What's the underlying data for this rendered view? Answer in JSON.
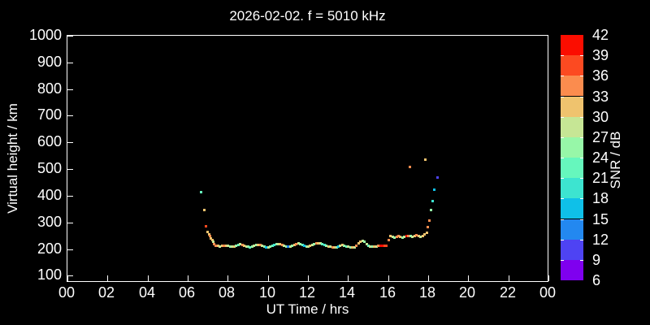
{
  "title": "2026-02-02. f = 5010 kHz",
  "colors": {
    "background": "#000000",
    "frame": "#FFFFFF",
    "text": "#FFFFFF"
  },
  "x_axis": {
    "label": "UT Time / hrs",
    "ticks": [
      {
        "hour": 0,
        "label": "00"
      },
      {
        "hour": 2,
        "label": "02"
      },
      {
        "hour": 4,
        "label": "04"
      },
      {
        "hour": 6,
        "label": "06"
      },
      {
        "hour": 8,
        "label": "08"
      },
      {
        "hour": 10,
        "label": "10"
      },
      {
        "hour": 12,
        "label": "12"
      },
      {
        "hour": 14,
        "label": "14"
      },
      {
        "hour": 16,
        "label": "16"
      },
      {
        "hour": 18,
        "label": "18"
      },
      {
        "hour": 20,
        "label": "20"
      },
      {
        "hour": 22,
        "label": "22"
      },
      {
        "hour": 24,
        "label": "00"
      }
    ]
  },
  "y_axis": {
    "label": "Virtual height / km",
    "ticks": [
      100,
      200,
      300,
      400,
      500,
      600,
      700,
      800,
      900,
      1000
    ]
  },
  "colorbar": {
    "label": "SNR / dB",
    "min": 6,
    "max": 42,
    "bin_size": 3,
    "ticks": [
      6,
      9,
      12,
      15,
      18,
      21,
      24,
      27,
      30,
      33,
      36,
      39,
      42
    ],
    "colors_low_to_high": [
      "#7F00EF",
      "#4E43F3",
      "#2388F0",
      "#0FC0E8",
      "#3DE4D0",
      "#66F7BD",
      "#97F7A8",
      "#C6E695",
      "#EFC36E",
      "#FB8C4E",
      "#FC4A21",
      "#FB0D00"
    ]
  },
  "chart_data": {
    "type": "scatter",
    "title": "2026-02-02. f = 5010 kHz",
    "xlabel": "UT Time / hrs",
    "ylabel": "Virtual height / km",
    "color_label": "SNR / dB",
    "x_range_hours": [
      0,
      24
    ],
    "y_range_km": [
      74,
      1000
    ],
    "snr_range_db": [
      6,
      42
    ],
    "point_format": [
      "ut_hours",
      "virtual_height_km",
      "snr_db"
    ],
    "points": [
      [
        6.65,
        416,
        22
      ],
      [
        6.81,
        349,
        31
      ],
      [
        6.89,
        288,
        37
      ],
      [
        6.97,
        267,
        31
      ],
      [
        7.05,
        258,
        31
      ],
      [
        7.09,
        249,
        34
      ],
      [
        7.13,
        242,
        31
      ],
      [
        7.22,
        236,
        31
      ],
      [
        7.26,
        230,
        28
      ],
      [
        7.3,
        221,
        34
      ],
      [
        7.38,
        215,
        34
      ],
      [
        7.5,
        213,
        31
      ],
      [
        7.6,
        212,
        28
      ],
      [
        7.7,
        213,
        31
      ],
      [
        7.8,
        214,
        34
      ],
      [
        7.9,
        215,
        31
      ],
      [
        8.0,
        213,
        28
      ],
      [
        8.1,
        211,
        25
      ],
      [
        8.2,
        210,
        28
      ],
      [
        8.3,
        212,
        31
      ],
      [
        8.4,
        215,
        25
      ],
      [
        8.5,
        218,
        22
      ],
      [
        8.6,
        220,
        28
      ],
      [
        8.7,
        218,
        34
      ],
      [
        8.8,
        215,
        31
      ],
      [
        8.9,
        212,
        28
      ],
      [
        9.0,
        210,
        25
      ],
      [
        9.1,
        208,
        22
      ],
      [
        9.2,
        210,
        25
      ],
      [
        9.3,
        213,
        28
      ],
      [
        9.4,
        216,
        25
      ],
      [
        9.5,
        218,
        31
      ],
      [
        9.6,
        216,
        34
      ],
      [
        9.7,
        213,
        28
      ],
      [
        9.8,
        211,
        25
      ],
      [
        9.9,
        209,
        16
      ],
      [
        10.0,
        208,
        28
      ],
      [
        10.1,
        210,
        25
      ],
      [
        10.2,
        213,
        22
      ],
      [
        10.3,
        216,
        19
      ],
      [
        10.4,
        219,
        25
      ],
      [
        10.5,
        221,
        28
      ],
      [
        10.6,
        219,
        31
      ],
      [
        10.7,
        216,
        34
      ],
      [
        10.8,
        213,
        28
      ],
      [
        10.9,
        211,
        25
      ],
      [
        11.0,
        210,
        13
      ],
      [
        11.1,
        212,
        28
      ],
      [
        11.2,
        215,
        25
      ],
      [
        11.3,
        218,
        31
      ],
      [
        11.4,
        220,
        34
      ],
      [
        11.5,
        222,
        28
      ],
      [
        11.6,
        220,
        25
      ],
      [
        11.7,
        217,
        22
      ],
      [
        11.8,
        214,
        16
      ],
      [
        11.9,
        212,
        25
      ],
      [
        12.0,
        211,
        28
      ],
      [
        12.1,
        213,
        31
      ],
      [
        12.2,
        216,
        28
      ],
      [
        12.3,
        219,
        25
      ],
      [
        12.4,
        222,
        34
      ],
      [
        12.5,
        224,
        31
      ],
      [
        12.6,
        222,
        28
      ],
      [
        12.7,
        219,
        22
      ],
      [
        12.8,
        216,
        19
      ],
      [
        12.9,
        214,
        25
      ],
      [
        13.0,
        212,
        31
      ],
      [
        13.1,
        210,
        28
      ],
      [
        13.2,
        208,
        34
      ],
      [
        13.3,
        207,
        31
      ],
      [
        13.4,
        209,
        25
      ],
      [
        13.5,
        212,
        16
      ],
      [
        13.6,
        215,
        28
      ],
      [
        13.7,
        217,
        31
      ],
      [
        13.8,
        215,
        25
      ],
      [
        13.9,
        212,
        22
      ],
      [
        14.0,
        210,
        28
      ],
      [
        14.1,
        208,
        25
      ],
      [
        14.2,
        207,
        31
      ],
      [
        14.3,
        209,
        28
      ],
      [
        14.4,
        214,
        34
      ],
      [
        14.5,
        222,
        31
      ],
      [
        14.6,
        230,
        31
      ],
      [
        14.7,
        233,
        28
      ],
      [
        14.8,
        228,
        25
      ],
      [
        14.9,
        220,
        28
      ],
      [
        15.0,
        215,
        22
      ],
      [
        15.1,
        212,
        28
      ],
      [
        15.2,
        210,
        25
      ],
      [
        15.3,
        211,
        31
      ],
      [
        15.4,
        212,
        28
      ],
      [
        15.5,
        213,
        34
      ],
      [
        15.6,
        213,
        40
      ],
      [
        15.7,
        214,
        41
      ],
      [
        15.8,
        214,
        38
      ],
      [
        15.9,
        215,
        37
      ],
      [
        16.0,
        236,
        34
      ],
      [
        16.1,
        249,
        31
      ],
      [
        16.2,
        247,
        28
      ],
      [
        16.3,
        245,
        25
      ],
      [
        16.4,
        248,
        34
      ],
      [
        16.5,
        250,
        34
      ],
      [
        16.6,
        247,
        31
      ],
      [
        16.7,
        244,
        25
      ],
      [
        16.8,
        246,
        28
      ],
      [
        16.9,
        250,
        40
      ],
      [
        17.0,
        252,
        34
      ],
      [
        17.07,
        510,
        34
      ],
      [
        17.1,
        250,
        25
      ],
      [
        17.2,
        248,
        28
      ],
      [
        17.3,
        250,
        31
      ],
      [
        17.4,
        253,
        34
      ],
      [
        17.5,
        250,
        31
      ],
      [
        17.6,
        248,
        28
      ],
      [
        17.7,
        252,
        31
      ],
      [
        17.8,
        258,
        31
      ],
      [
        17.84,
        538,
        31
      ],
      [
        17.9,
        264,
        31
      ],
      [
        17.97,
        285,
        34
      ],
      [
        18.05,
        309,
        34
      ],
      [
        18.13,
        349,
        25
      ],
      [
        18.22,
        380,
        19
      ],
      [
        18.3,
        425,
        16
      ],
      [
        18.45,
        470,
        10
      ]
    ]
  }
}
